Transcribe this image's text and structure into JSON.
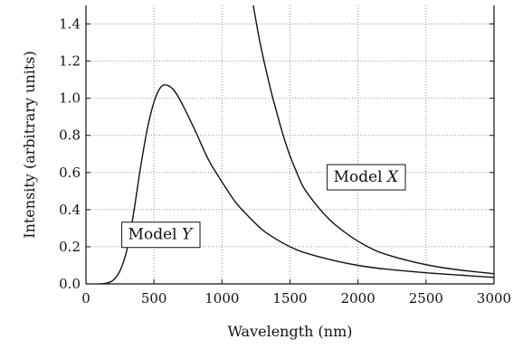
{
  "chart_data": {
    "type": "line",
    "title": "",
    "xlabel": "Wavelength (nm)",
    "ylabel": "Intensity (arbitrary units)",
    "xlim": [
      0,
      3000
    ],
    "ylim": [
      0,
      1.5
    ],
    "xticks": [
      0,
      500,
      1000,
      1500,
      2000,
      2500,
      3000
    ],
    "xtick_labels": [
      "0",
      "500",
      "1000",
      "1500",
      "2000",
      "2500",
      "3000"
    ],
    "yticks": [
      0.0,
      0.2,
      0.4,
      0.6,
      0.8,
      1.0,
      1.2,
      1.4
    ],
    "ytick_labels": [
      "0.0",
      "0.2",
      "0.4",
      "0.6",
      "0.8",
      "1.0",
      "1.2",
      "1.4"
    ],
    "grid": true,
    "series": [
      {
        "name": "Model Y",
        "label_prefix": "Model ",
        "label_var": "Y",
        "label_anchor": [
          310,
          0.24
        ],
        "x": [
          100,
          150,
          200,
          250,
          300,
          350,
          400,
          450,
          500,
          550,
          600,
          650,
          700,
          800,
          900,
          1000,
          1100,
          1200,
          1300,
          1400,
          1500,
          1600,
          1800,
          2000,
          2200,
          2500,
          2800,
          3000
        ],
        "y": [
          0.0,
          0.004,
          0.02,
          0.07,
          0.18,
          0.38,
          0.62,
          0.83,
          0.98,
          1.06,
          1.07,
          1.04,
          0.98,
          0.83,
          0.67,
          0.55,
          0.44,
          0.36,
          0.29,
          0.24,
          0.2,
          0.17,
          0.13,
          0.1,
          0.08,
          0.06,
          0.045,
          0.035
        ]
      },
      {
        "name": "Model X",
        "label_prefix": "Model ",
        "label_var": "X",
        "label_anchor": [
          1820,
          0.55
        ],
        "x": [
          1230,
          1280,
          1350,
          1400,
          1450,
          1500,
          1550,
          1600,
          1700,
          1800,
          1900,
          2000,
          2100,
          2200,
          2400,
          2600,
          2800,
          3000
        ],
        "y": [
          1.5,
          1.3,
          1.07,
          0.93,
          0.8,
          0.69,
          0.6,
          0.52,
          0.42,
          0.34,
          0.28,
          0.23,
          0.19,
          0.16,
          0.12,
          0.09,
          0.07,
          0.055
        ]
      }
    ]
  }
}
